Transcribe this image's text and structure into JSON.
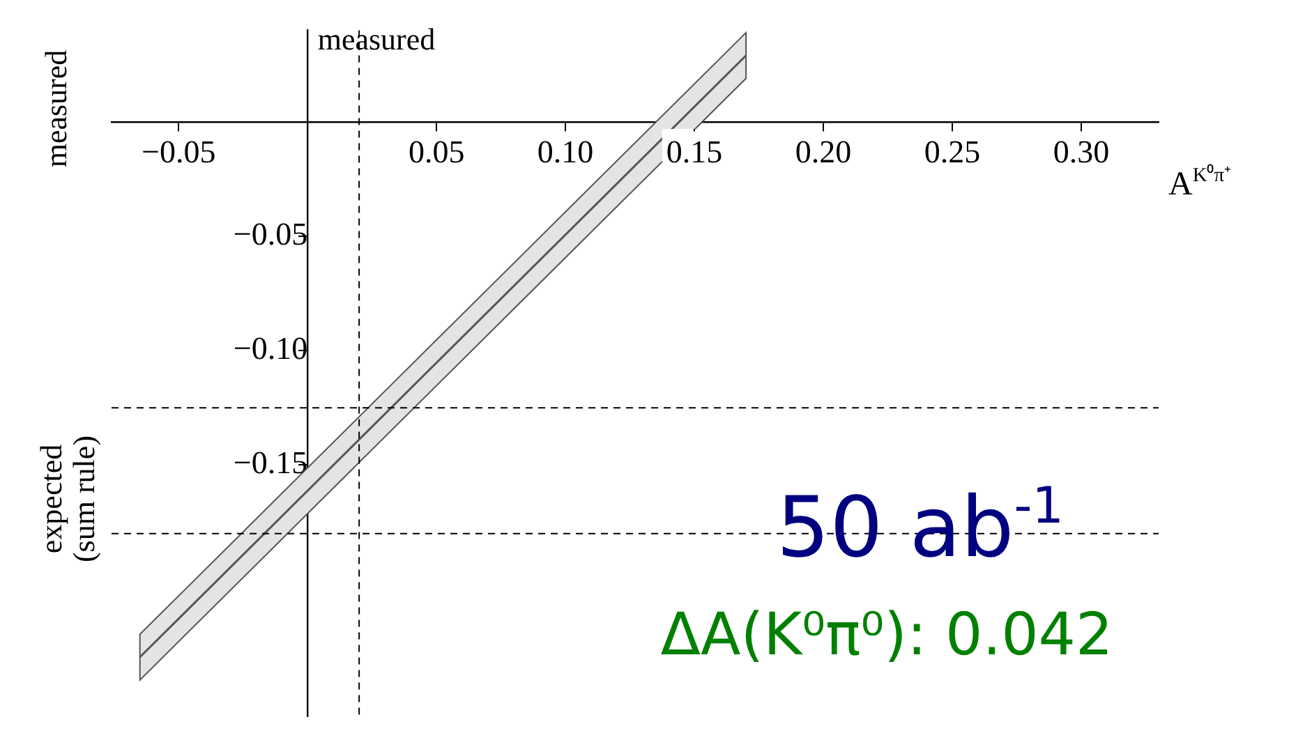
{
  "chart_data": {
    "type": "line",
    "xlabel": "A$^{K⁰π⁺}$",
    "x": [
      -0.065,
      0.17
    ],
    "series": [
      {
        "color": "#555555",
        "values": [
          -0.234,
          0.029
        ],
        "lower": [
          -0.244,
          0.019
        ],
        "upper": [
          -0.224,
          0.039
        ]
      }
    ],
    "xlim": [
      -0.076,
      0.33
    ],
    "ylim": [
      -0.26,
      0.04
    ],
    "xticks": [
      {
        "value": -0.05,
        "label": "−0.05"
      },
      {
        "value": 0,
        "label": null
      },
      {
        "value": 0.05,
        "label": "0.05"
      },
      {
        "value": 0.1,
        "label": "0.10"
      },
      {
        "value": 0.15,
        "label": "0.15"
      },
      {
        "value": 0.2,
        "label": "0.20"
      },
      {
        "value": 0.25,
        "label": "0.25"
      },
      {
        "value": 0.3,
        "label": "0.30"
      }
    ],
    "yticks": [
      {
        "value": -0.05,
        "label": "−0.05"
      },
      {
        "value": -0.1,
        "label": "−0.10"
      },
      {
        "value": -0.15,
        "label": "−0.15"
      }
    ],
    "ref_lines": [
      {
        "axis": "x",
        "value": 0.02,
        "line_style": "dashed",
        "color": "#000000"
      },
      {
        "axis": "y",
        "value": -0.125,
        "line_style": "dashed",
        "color": "#000000"
      },
      {
        "axis": "y",
        "value": -0.18,
        "line_style": "dashed",
        "color": "#000000"
      }
    ],
    "annotations": [
      "measured",
      "measured",
      "expected (sum rule)",
      "50 ab$^{-1}$",
      "ΔA(K⁰π⁰): 0.042"
    ],
    "grid": false,
    "legend": false,
    "marker": "none",
    "line_style": "solid"
  }
}
